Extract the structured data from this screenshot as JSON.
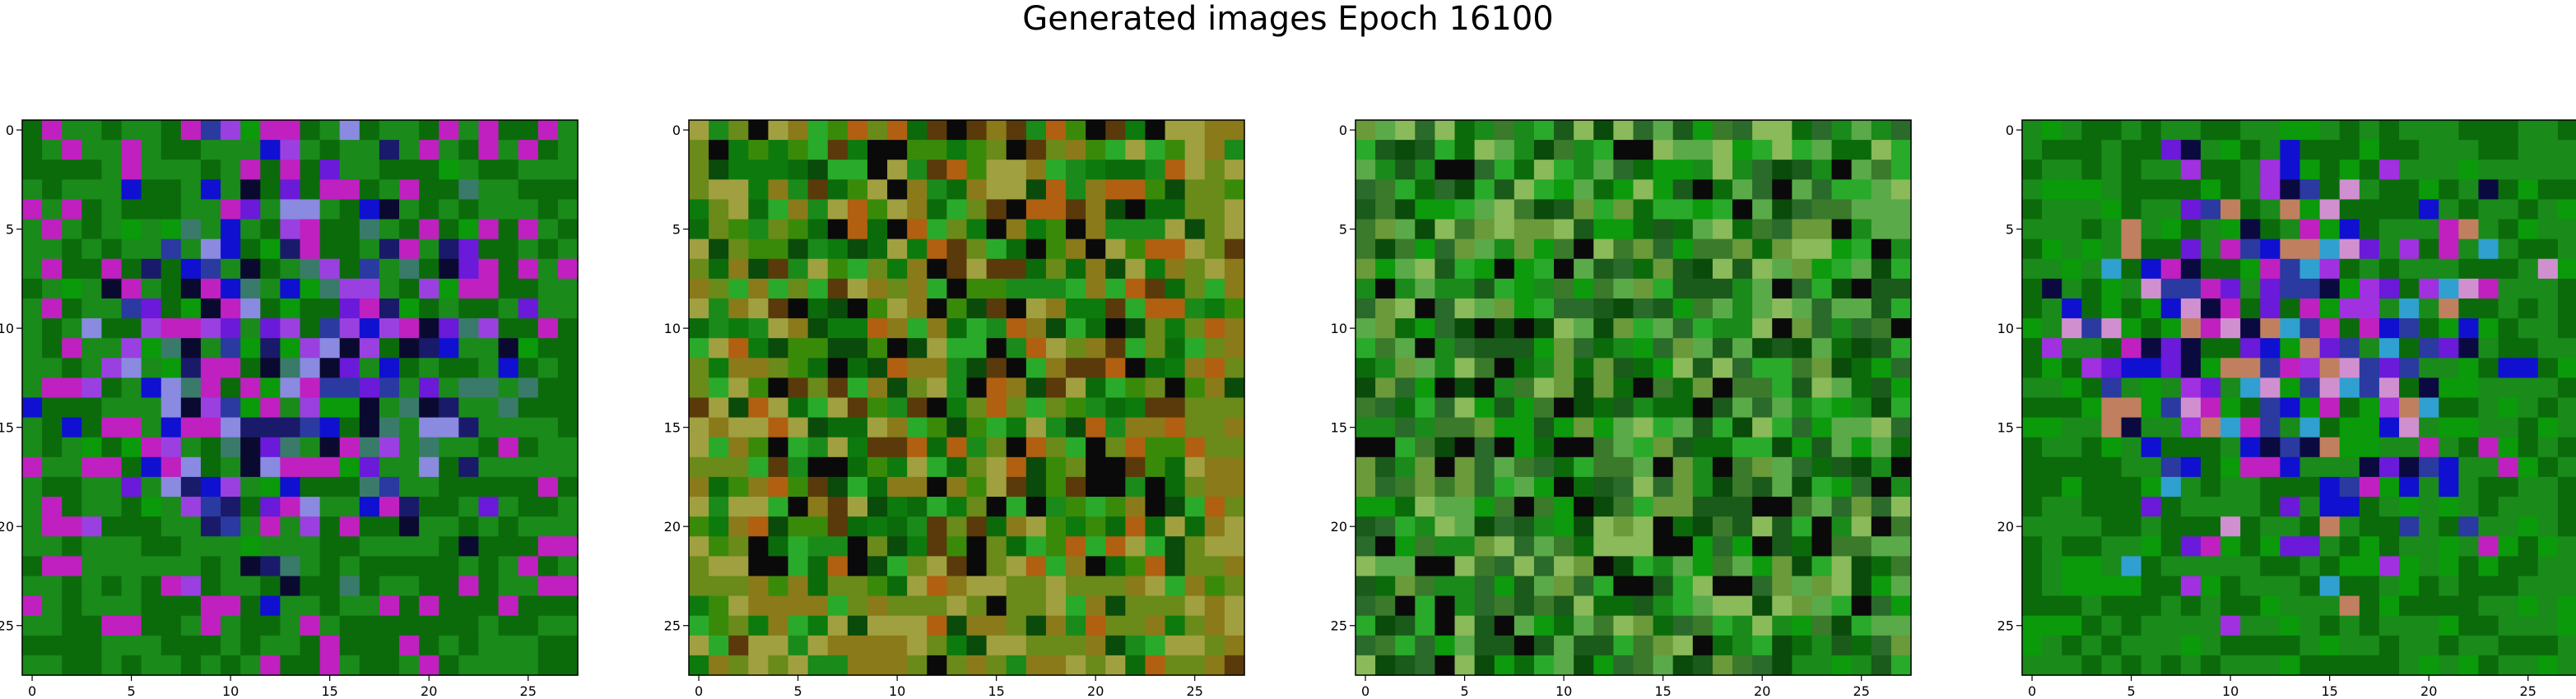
{
  "figure": {
    "title": "Generated images Epoch 16100"
  },
  "chart_data": [
    {
      "type": "heatmap",
      "title": "",
      "grid_size": 28,
      "xlim": [
        -0.5,
        27.5
      ],
      "ylim": [
        27.5,
        -0.5
      ],
      "x_ticks": [
        0,
        5,
        10,
        15,
        20,
        25
      ],
      "y_ticks": [
        0,
        5,
        10,
        15,
        20,
        25
      ],
      "palette": [
        "#0b6b0b",
        "#1a8a1a",
        "#2a3aa0",
        "#1010d0",
        "#6a1ad8",
        "#9a40e0",
        "#0a0a30",
        "#3a7a6a",
        "#8a8ae0",
        "#1a1a6a",
        "#0a9a0a",
        "#c020c0"
      ],
      "pixel_pattern": "blue-purple center on green noise"
    },
    {
      "type": "heatmap",
      "title": "",
      "grid_size": 28,
      "xlim": [
        -0.5,
        27.5
      ],
      "ylim": [
        27.5,
        -0.5
      ],
      "x_ticks": [
        0,
        5,
        10,
        15,
        20,
        25
      ],
      "y_ticks": [
        0,
        5,
        10,
        15,
        20,
        25
      ],
      "palette": [
        "#0b6b0b",
        "#1a8a1a",
        "#3a8a0a",
        "#0a4a0a",
        "#6a8a1a",
        "#8a7a1a",
        "#a0a040",
        "#0a0a0a",
        "#2aaa2a",
        "#5a3a0a",
        "#b06010",
        "#0d7a0d"
      ],
      "pixel_pattern": "green with olive/brown border"
    },
    {
      "type": "heatmap",
      "title": "",
      "grid_size": 28,
      "xlim": [
        -0.5,
        27.5
      ],
      "ylim": [
        27.5,
        -0.5
      ],
      "x_ticks": [
        0,
        5,
        10,
        15,
        20,
        25
      ],
      "y_ticks": [
        0,
        5,
        10,
        15,
        20,
        25
      ],
      "palette": [
        "#0b6b0b",
        "#1a8a1a",
        "#2aaa2a",
        "#0a4a0a",
        "#6a9a3a",
        "#0a0a0a",
        "#3a7a2a",
        "#8aba5a",
        "#1a5a1a",
        "#0d9a0d",
        "#5aaa4a",
        "#2a6a2a"
      ],
      "pixel_pattern": "mostly green noise"
    },
    {
      "type": "heatmap",
      "title": "",
      "grid_size": 28,
      "xlim": [
        -0.5,
        27.5
      ],
      "ylim": [
        27.5,
        -0.5
      ],
      "x_ticks": [
        0,
        5,
        10,
        15,
        20,
        25
      ],
      "y_ticks": [
        0,
        5,
        10,
        15,
        20,
        25
      ],
      "palette": [
        "#0b6b0b",
        "#1a8a1a",
        "#1010d0",
        "#6a1ad8",
        "#a030e0",
        "#c020c0",
        "#0a0a40",
        "#2a3aa0",
        "#d090d0",
        "#30a0d0",
        "#c08060",
        "#0a9a0a"
      ],
      "pixel_pattern": "purple/blue center on green noise"
    }
  ]
}
